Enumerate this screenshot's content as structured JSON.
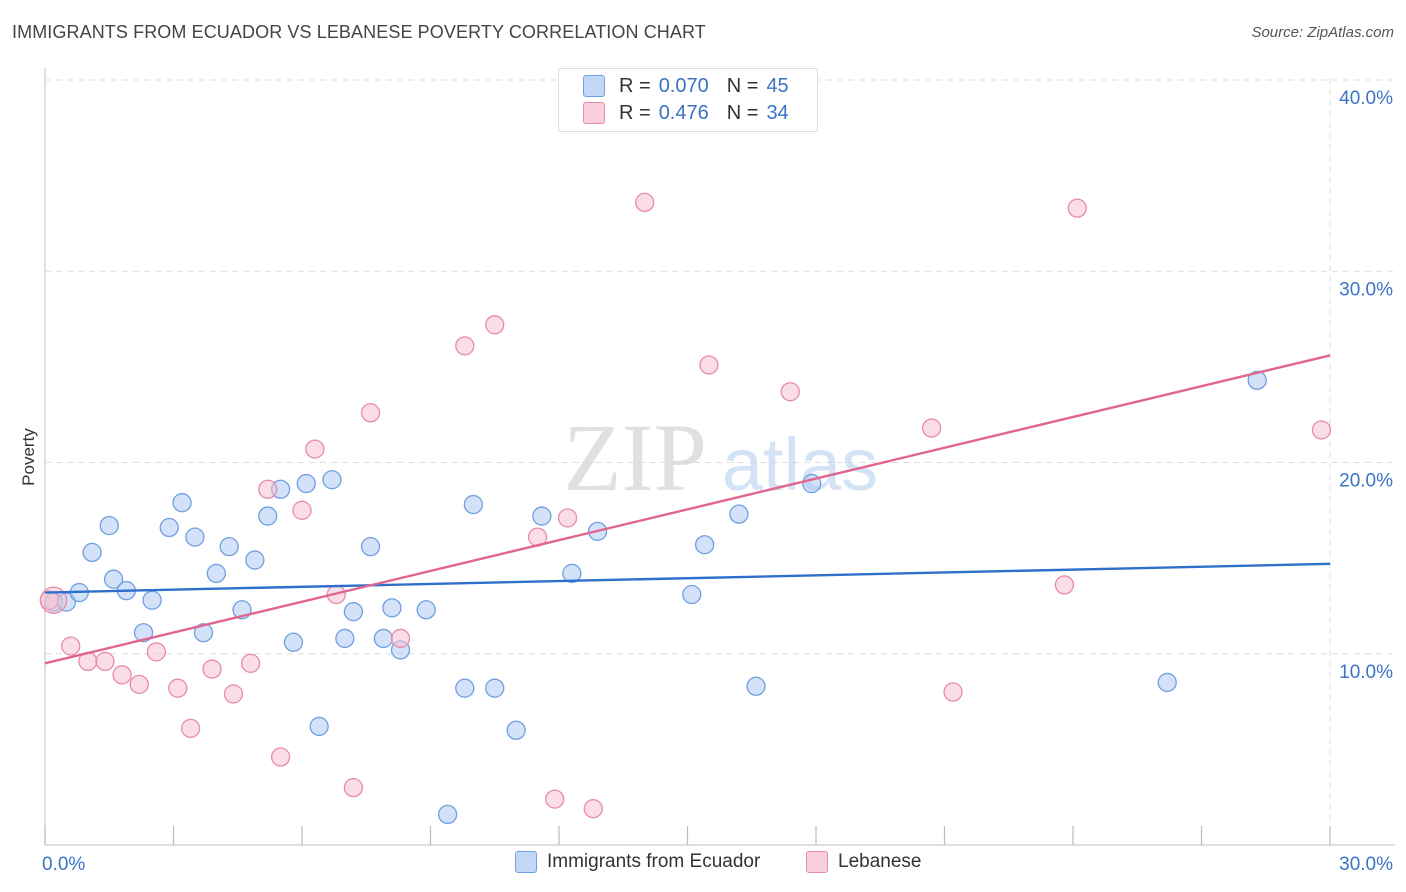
{
  "title": "IMMIGRANTS FROM ECUADOR VS LEBANESE POVERTY CORRELATION CHART",
  "source": "Source: ZipAtlas.com",
  "watermark": {
    "zip": "ZIP",
    "atlas": "atlas"
  },
  "legend": {
    "rows": [
      {
        "r_label": "R =",
        "r_value": "0.070",
        "n_label": "N =",
        "n_value": "45"
      },
      {
        "r_label": "R =",
        "r_value": "0.476",
        "n_label": "N =",
        "n_value": "34"
      }
    ]
  },
  "colors": {
    "ecuador_fill": "#aecbf3",
    "ecuador_stroke": "#6f9fe0",
    "ecuador_line": "#2f6fcc",
    "lebanese_fill": "#f7c1d2",
    "lebanese_stroke": "#e88aaa",
    "lebanese_line": "#e0668f",
    "axis_text": "#3b73c5",
    "grid": "#dddddd"
  },
  "chart_data": {
    "type": "scatter",
    "title": "IMMIGRANTS FROM ECUADOR VS LEBANESE POVERTY CORRELATION CHART",
    "xlabel": "",
    "ylabel": "Poverty",
    "xlim": [
      0,
      30
    ],
    "ylim": [
      0,
      40
    ],
    "x_tick_labels": [
      "0.0%",
      "30.0%"
    ],
    "y_ticks": [
      10,
      20,
      30,
      40
    ],
    "y_tick_labels": [
      "10.0%",
      "20.0%",
      "30.0%",
      "40.0%"
    ],
    "grid": true,
    "series": [
      {
        "name": "Immigrants from Ecuador",
        "r": 0.07,
        "n": 45,
        "trend": {
          "x": [
            0,
            30
          ],
          "y": [
            13.2,
            14.7
          ]
        },
        "points": [
          [
            0.2,
            12.7
          ],
          [
            0.5,
            12.7
          ],
          [
            0.8,
            13.2
          ],
          [
            1.1,
            15.3
          ],
          [
            1.5,
            16.7
          ],
          [
            1.6,
            13.9
          ],
          [
            1.9,
            13.3
          ],
          [
            2.3,
            11.1
          ],
          [
            2.5,
            12.8
          ],
          [
            2.9,
            16.6
          ],
          [
            3.2,
            17.9
          ],
          [
            3.5,
            16.1
          ],
          [
            3.7,
            11.1
          ],
          [
            4.0,
            14.2
          ],
          [
            4.3,
            15.6
          ],
          [
            4.6,
            12.3
          ],
          [
            4.9,
            14.9
          ],
          [
            5.2,
            17.2
          ],
          [
            5.5,
            18.6
          ],
          [
            5.8,
            10.6
          ],
          [
            6.1,
            18.9
          ],
          [
            6.4,
            6.2
          ],
          [
            6.7,
            19.1
          ],
          [
            7.0,
            10.8
          ],
          [
            7.2,
            12.2
          ],
          [
            7.6,
            15.6
          ],
          [
            7.9,
            10.8
          ],
          [
            8.1,
            12.4
          ],
          [
            8.3,
            10.2
          ],
          [
            8.9,
            12.3
          ],
          [
            9.4,
            1.6
          ],
          [
            9.8,
            8.2
          ],
          [
            10.0,
            17.8
          ],
          [
            10.5,
            8.2
          ],
          [
            11.0,
            6.0
          ],
          [
            11.6,
            17.2
          ],
          [
            12.3,
            14.2
          ],
          [
            12.9,
            16.4
          ],
          [
            15.1,
            13.1
          ],
          [
            15.4,
            15.7
          ],
          [
            16.2,
            17.3
          ],
          [
            16.6,
            8.3
          ],
          [
            17.9,
            18.9
          ],
          [
            26.2,
            8.5
          ],
          [
            28.3,
            24.3
          ]
        ]
      },
      {
        "name": "Lebanese",
        "r": 0.476,
        "n": 34,
        "trend": {
          "x": [
            0,
            30
          ],
          "y": [
            9.5,
            25.6
          ]
        },
        "points": [
          [
            0.1,
            12.8
          ],
          [
            0.6,
            10.4
          ],
          [
            1.0,
            9.6
          ],
          [
            1.4,
            9.6
          ],
          [
            1.8,
            8.9
          ],
          [
            2.2,
            8.4
          ],
          [
            2.6,
            10.1
          ],
          [
            3.1,
            8.2
          ],
          [
            3.4,
            6.1
          ],
          [
            3.9,
            9.2
          ],
          [
            4.4,
            7.9
          ],
          [
            4.8,
            9.5
          ],
          [
            5.2,
            18.6
          ],
          [
            5.5,
            4.6
          ],
          [
            6.0,
            17.5
          ],
          [
            6.3,
            20.7
          ],
          [
            6.8,
            13.1
          ],
          [
            7.2,
            3.0
          ],
          [
            7.6,
            22.6
          ],
          [
            8.3,
            10.8
          ],
          [
            9.8,
            26.1
          ],
          [
            10.5,
            27.2
          ],
          [
            11.5,
            16.1
          ],
          [
            11.9,
            2.4
          ],
          [
            12.2,
            17.1
          ],
          [
            12.8,
            1.9
          ],
          [
            14.0,
            33.6
          ],
          [
            15.5,
            25.1
          ],
          [
            17.4,
            23.7
          ],
          [
            20.7,
            21.8
          ],
          [
            21.2,
            8.0
          ],
          [
            23.8,
            13.6
          ],
          [
            24.1,
            33.3
          ],
          [
            29.8,
            21.7
          ]
        ]
      }
    ]
  },
  "bottom_legend": [
    "Immigrants from Ecuador",
    "Lebanese"
  ]
}
